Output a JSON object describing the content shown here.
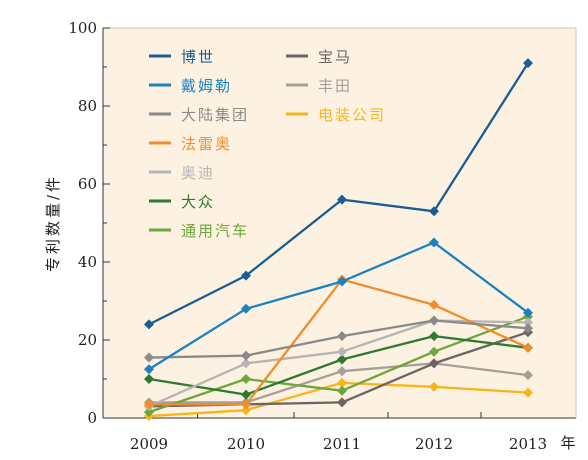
{
  "chart_data": {
    "type": "line",
    "background": "#fdf2e2",
    "x": [
      "2009",
      "2010",
      "2011",
      "2012",
      "2013"
    ],
    "x_unit": "年",
    "ylabel": "专利数量/件",
    "ylim": [
      0,
      100
    ],
    "yticks": [
      "0",
      "20",
      "40",
      "60",
      "80",
      "100"
    ],
    "grid": false,
    "legend_position": "top-left",
    "series": [
      {
        "name": "博世",
        "color": "#1a5d94",
        "values": [
          24,
          36.5,
          56,
          53,
          91
        ]
      },
      {
        "name": "戴姆勒",
        "color": "#1b82c0",
        "values": [
          12.5,
          28,
          35,
          45,
          27
        ]
      },
      {
        "name": "大陆集团",
        "color": "#8a8a8a",
        "values": [
          15.5,
          16,
          21,
          25,
          23
        ]
      },
      {
        "name": "法雷奥",
        "color": "#f28c28",
        "values": [
          3.5,
          3.5,
          35.5,
          29,
          18
        ]
      },
      {
        "name": "奥迪",
        "color": "#b5b5b5",
        "values": [
          3,
          14,
          17,
          25,
          24.5
        ]
      },
      {
        "name": "大众",
        "color": "#2e7a33",
        "values": [
          10,
          6,
          15,
          21,
          18
        ]
      },
      {
        "name": "通用汽车",
        "color": "#6fa53a",
        "values": [
          1.5,
          10,
          7,
          17,
          26
        ]
      },
      {
        "name": "宝马",
        "color": "#6e6462",
        "values": [
          3,
          3.5,
          4,
          14,
          22
        ]
      },
      {
        "name": "丰田",
        "color": "#a89e97",
        "values": [
          4,
          4,
          12,
          14,
          11
        ]
      },
      {
        "name": "电装公司",
        "color": "#f7b51c",
        "values": [
          0.5,
          2,
          9,
          8,
          6.5
        ]
      }
    ]
  }
}
